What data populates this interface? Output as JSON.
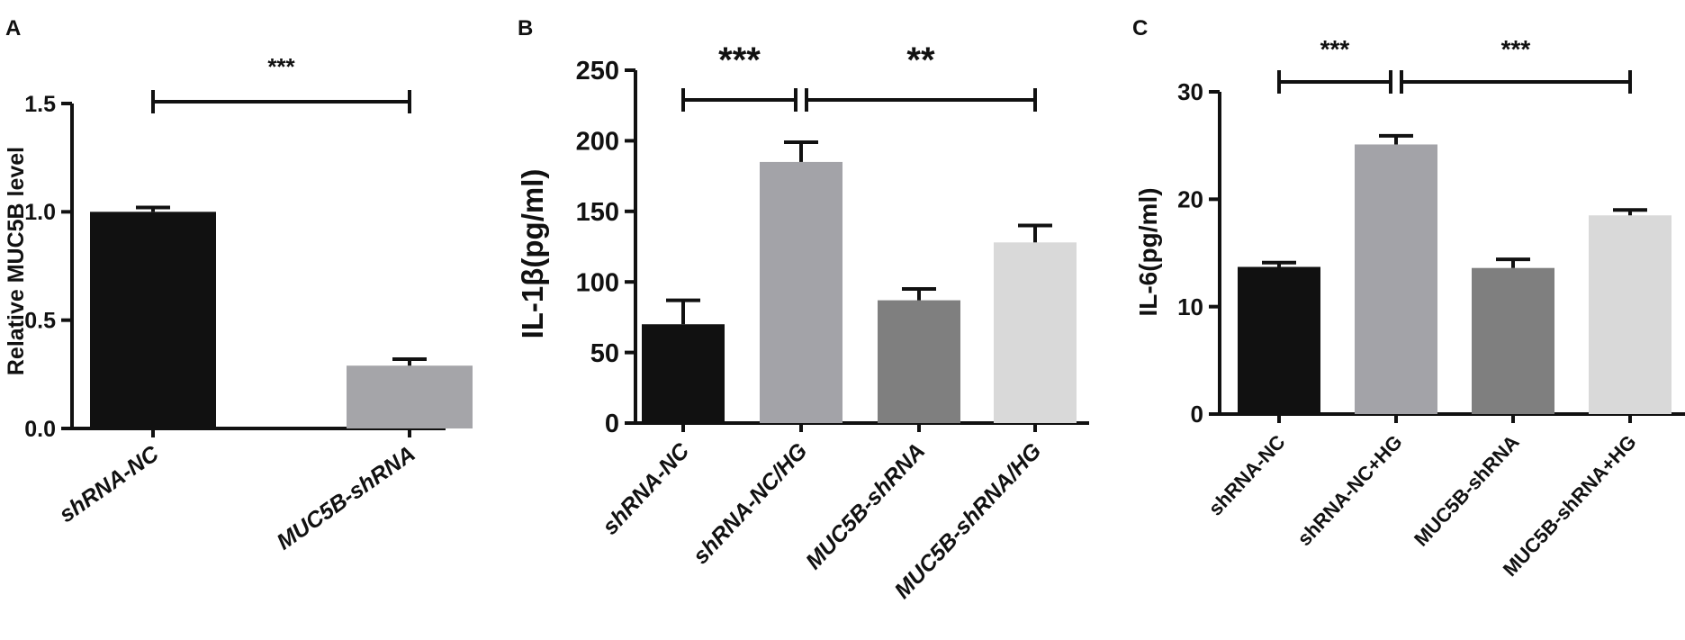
{
  "chart_data": [
    {
      "panel_label": "A",
      "type": "bar",
      "categories": [
        "shRNA-NC",
        "MUC5B-shRNA"
      ],
      "category_italic": [
        true,
        true
      ],
      "values": [
        1.0,
        0.29
      ],
      "errors": [
        0.02,
        0.03
      ],
      "bar_colors": [
        "#111111",
        "#a5a5a9"
      ],
      "ylabel": "Relative MUC5B level",
      "ylim": [
        0,
        1.5
      ],
      "yticks": [
        "0.0",
        "0.5",
        "1.0",
        "1.5"
      ],
      "significance": [
        {
          "from": 0,
          "to": 1,
          "label": "***"
        }
      ]
    },
    {
      "panel_label": "B",
      "type": "bar",
      "categories": [
        "shRNA-NC",
        "shRNA-NC/HG",
        "MUC5B-shRNA",
        "MUC5B-shRNA/HG"
      ],
      "category_italic": [
        true,
        true,
        true,
        true
      ],
      "values": [
        70,
        185,
        87,
        128
      ],
      "errors": [
        17,
        14,
        8,
        12
      ],
      "bar_colors": [
        "#111111",
        "#a3a3a8",
        "#7f7f7f",
        "#d9d9d9"
      ],
      "ylabel": "IL-1β(pg/ml)",
      "ylim": [
        0,
        250
      ],
      "yticks": [
        "0",
        "50",
        "100",
        "150",
        "200",
        "250"
      ],
      "significance": [
        {
          "from": 0,
          "to": 1,
          "label": "***"
        },
        {
          "from": 1,
          "to": 3,
          "label": "**"
        }
      ]
    },
    {
      "panel_label": "C",
      "type": "bar",
      "categories": [
        "shRNA-NC",
        "shRNA-NC+HG",
        "MUC5B-shRNA",
        "MUC5B-shRNA+HG"
      ],
      "category_italic": [
        false,
        false,
        false,
        false
      ],
      "values": [
        13.7,
        25.1,
        13.6,
        18.5
      ],
      "errors": [
        0.4,
        0.8,
        0.8,
        0.5
      ],
      "bar_colors": [
        "#111111",
        "#a3a3a8",
        "#7f7f7f",
        "#d9d9d9"
      ],
      "ylabel": "IL-6(pg/ml)",
      "ylim": [
        0,
        30
      ],
      "yticks": [
        "0",
        "10",
        "20",
        "30"
      ],
      "significance": [
        {
          "from": 0,
          "to": 1,
          "label": "***"
        },
        {
          "from": 1,
          "to": 3,
          "label": "***"
        }
      ]
    }
  ]
}
